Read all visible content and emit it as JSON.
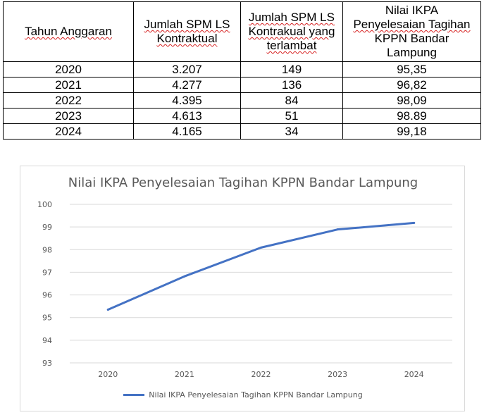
{
  "table": {
    "headers": [
      [
        "Tahun Anggaran"
      ],
      [
        "Jumlah SPM LS",
        "Kontraktual"
      ],
      [
        "Jumlah SPM LS",
        "Kontrakual yang",
        "terlambat"
      ],
      [
        "Nilai IKPA",
        "Penyelesaian Tagihan",
        "KPPN Bandar",
        "Lampung"
      ]
    ],
    "rows": [
      [
        "2020",
        "3.207",
        "149",
        "95,35"
      ],
      [
        "2021",
        "4.277",
        "136",
        "96,82"
      ],
      [
        "2022",
        "4.395",
        "84",
        "98,09"
      ],
      [
        "2023",
        "4.613",
        "51",
        "98.89"
      ],
      [
        "2024",
        "4.165",
        "34",
        "99,18"
      ]
    ]
  },
  "chart_data": {
    "type": "line",
    "title": "Nilai IKPA Penyelesaian Tagihan KPPN Bandar Lampung",
    "categories": [
      "2020",
      "2021",
      "2022",
      "2023",
      "2024"
    ],
    "series": [
      {
        "name": "Nilai IKPA Penyelesaian Tagihan KPPN Bandar Lampung",
        "values": [
          95.35,
          96.82,
          98.09,
          98.89,
          99.18
        ],
        "color": "#4472c4"
      }
    ],
    "ylim": [
      93,
      100
    ],
    "yticks": [
      "93",
      "94",
      "95",
      "96",
      "97",
      "98",
      "99",
      "100"
    ],
    "xlabel": "",
    "ylabel": "",
    "grid": true,
    "legend": "bottom"
  }
}
